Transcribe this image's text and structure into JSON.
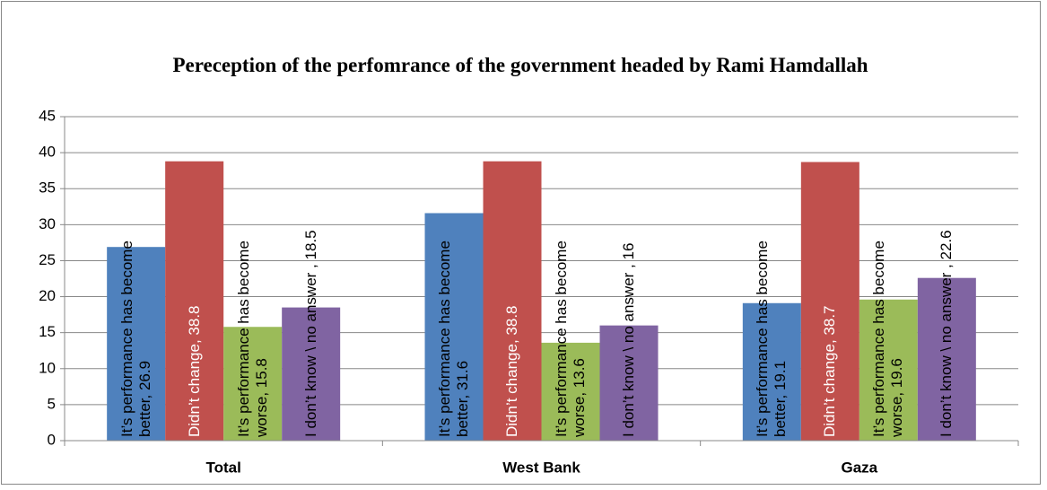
{
  "chart_data": {
    "type": "bar",
    "title": "Pereception of the perfomrance of the government headed by Rami Hamdallah",
    "categories": [
      "Total",
      "West Bank",
      "Gaza"
    ],
    "series": [
      {
        "color": "#4f81bd",
        "values": [
          26.9,
          31.6,
          19.1
        ],
        "value_labels": [
          "It’s performance has become better, 26.9",
          "It’s performance has become better, 31.6",
          "It’s performance has become better, 19.1"
        ]
      },
      {
        "color": "#c0504d",
        "values": [
          38.8,
          38.8,
          38.7
        ],
        "value_labels": [
          "Didn’t change, 38.8",
          "Didn’t change, 38.8",
          "Didn’t change, 38.7"
        ]
      },
      {
        "color": "#9bbb59",
        "values": [
          15.8,
          13.6,
          19.6
        ],
        "value_labels": [
          "It’s performance has become worse, 15.8",
          "It’s performance has become worse, 13.6",
          "It’s performance has become worse, 19.6"
        ]
      },
      {
        "color": "#8064a2",
        "values": [
          18.5,
          16,
          22.6
        ],
        "value_labels": [
          "I don’t know \\ no answer , 18.5",
          "I don’t know \\ no answer , 16",
          "I don’t know \\ no answer , 22.6"
        ]
      }
    ],
    "ylim": [
      0,
      45
    ],
    "yticks": [
      0,
      5,
      10,
      15,
      20,
      25,
      30,
      35,
      40,
      45
    ],
    "grid": true
  }
}
